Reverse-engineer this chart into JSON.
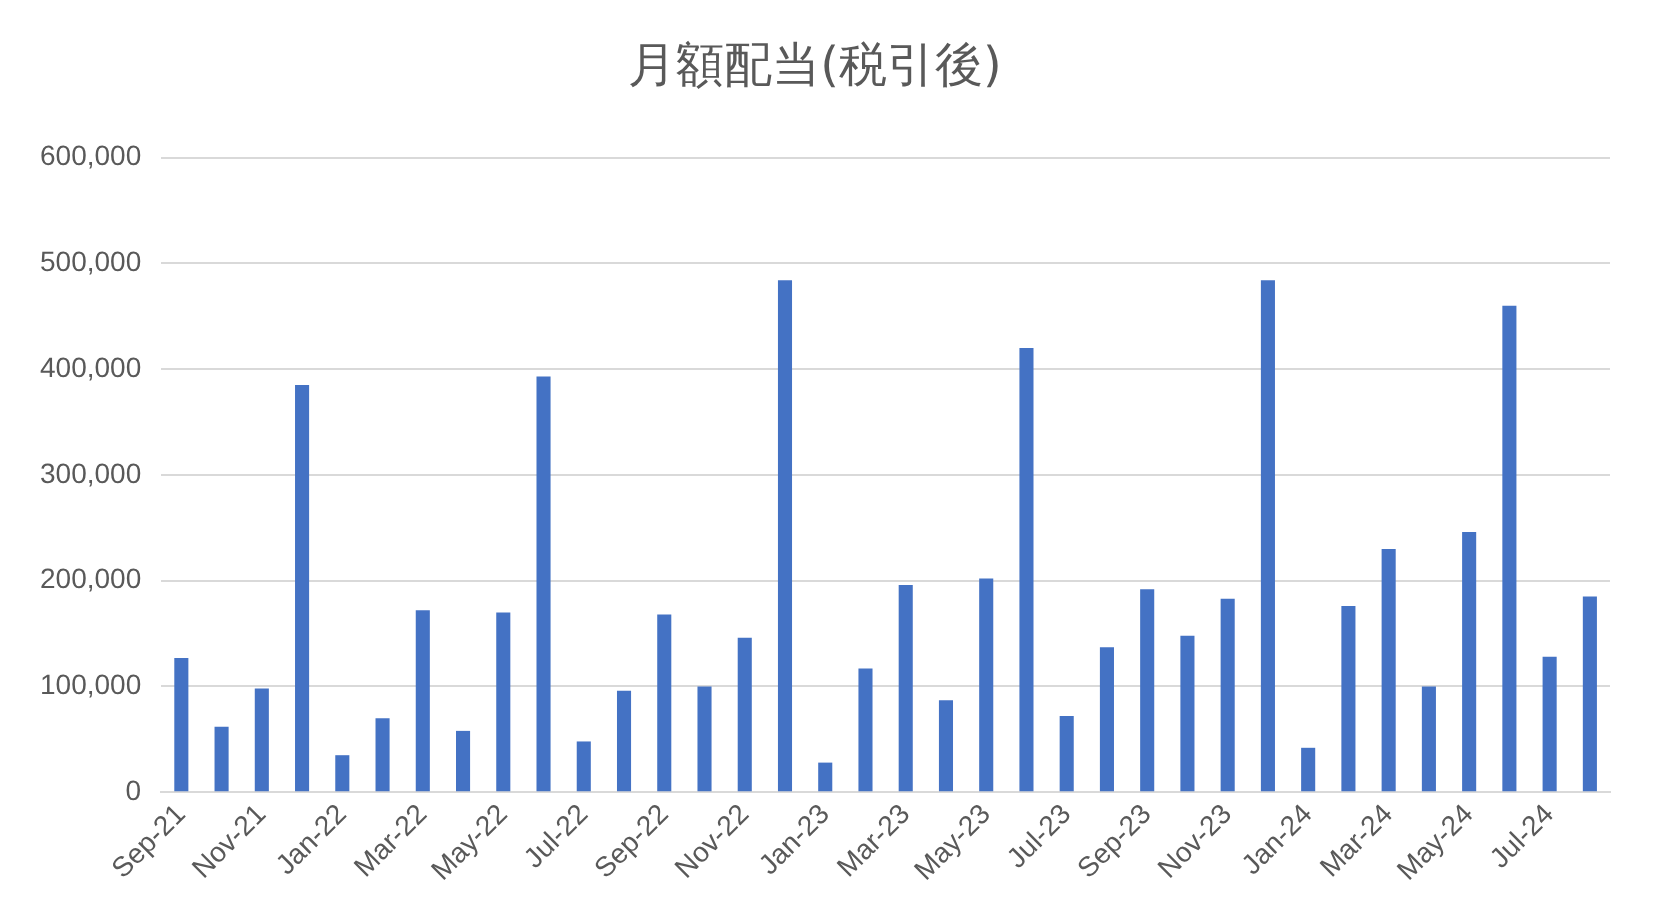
{
  "chart_data": {
    "type": "bar",
    "title": "月額配当(税引後)",
    "categories": [
      "Sep-21",
      null,
      "Nov-21",
      null,
      "Jan-22",
      null,
      "Mar-22",
      null,
      "May-22",
      null,
      "Jul-22",
      null,
      "Sep-22",
      null,
      "Nov-22",
      null,
      "Jan-23",
      null,
      "Mar-23",
      null,
      "May-23",
      null,
      "Jul-23",
      null,
      "Sep-23",
      null,
      "Nov-23",
      null,
      "Jan-24",
      null,
      "Mar-24",
      null,
      "May-24",
      null,
      "Jul-24",
      null
    ],
    "values": [
      127000,
      62000,
      98000,
      385000,
      35000,
      70000,
      172000,
      58000,
      170000,
      393000,
      48000,
      96000,
      168000,
      100000,
      146000,
      484000,
      28000,
      117000,
      196000,
      87000,
      202000,
      420000,
      72000,
      137000,
      192000,
      148000,
      183000,
      484000,
      42000,
      176000,
      230000,
      100000,
      246000,
      460000,
      128000,
      185000
    ],
    "color": "#4472c4",
    "ylim": [
      0,
      600000
    ],
    "yticks": [
      0,
      {
        "value": 100000,
        "label": "100,000"
      },
      {
        "value": 200000,
        "label": "200,000"
      },
      {
        "value": 300000,
        "label": "300,000"
      },
      {
        "value": 400000,
        "label": "400,000"
      },
      {
        "value": 500000,
        "label": "500,000"
      },
      {
        "value": 600000,
        "label": "600,000"
      }
    ],
    "grid": "y"
  }
}
